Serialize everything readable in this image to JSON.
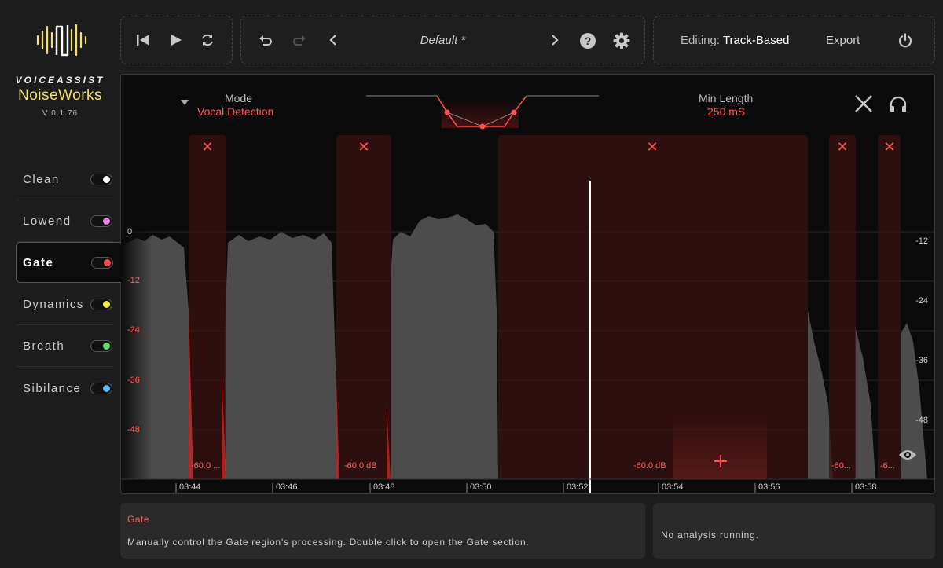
{
  "brand": {
    "top": "VOICEASSIST",
    "name": "NoiseWorks",
    "version": "V 0.1.76",
    "accent": "#f4e26a"
  },
  "sidebar": {
    "items": [
      {
        "label": "Clean",
        "color": "#ffffff",
        "active": false
      },
      {
        "label": "Lowend",
        "color": "#e67ee6",
        "active": false
      },
      {
        "label": "Gate",
        "color": "#ff4a4a",
        "active": true
      },
      {
        "label": "Dynamics",
        "color": "#f4e84a",
        "active": false
      },
      {
        "label": "Breath",
        "color": "#5be06a",
        "active": false
      },
      {
        "label": "Sibilance",
        "color": "#5ab8f0",
        "active": false
      }
    ]
  },
  "toolbar": {
    "preset": "Default *",
    "editing_label": "Editing:",
    "editing_value": "Track-Based",
    "export_label": "Export"
  },
  "gate": {
    "mode_label": "Mode",
    "mode_value": "Vocal Detection",
    "min_length_label": "Min Length",
    "min_length_value": "250 mS",
    "regions": [
      {
        "label": "-60.0 ..."
      },
      {
        "label": "-60.0 dB"
      },
      {
        "label": "-60.0 dB"
      },
      {
        "label": "-60..."
      },
      {
        "label": "-6..."
      }
    ],
    "region_color": "#ff4a4a"
  },
  "axes": {
    "left_db": [
      "0",
      "-12",
      "-24",
      "-36",
      "-48"
    ],
    "right_db": [
      "-12",
      "-24",
      "-36",
      "-48"
    ],
    "time": [
      "03:44",
      "03:46",
      "03:48",
      "03:50",
      "03:52",
      "03:54",
      "03:56",
      "03:58"
    ]
  },
  "info": {
    "title": "Gate",
    "description": "Manually control the Gate region's processing. Double click to open the Gate section.",
    "status": "No analysis running."
  }
}
